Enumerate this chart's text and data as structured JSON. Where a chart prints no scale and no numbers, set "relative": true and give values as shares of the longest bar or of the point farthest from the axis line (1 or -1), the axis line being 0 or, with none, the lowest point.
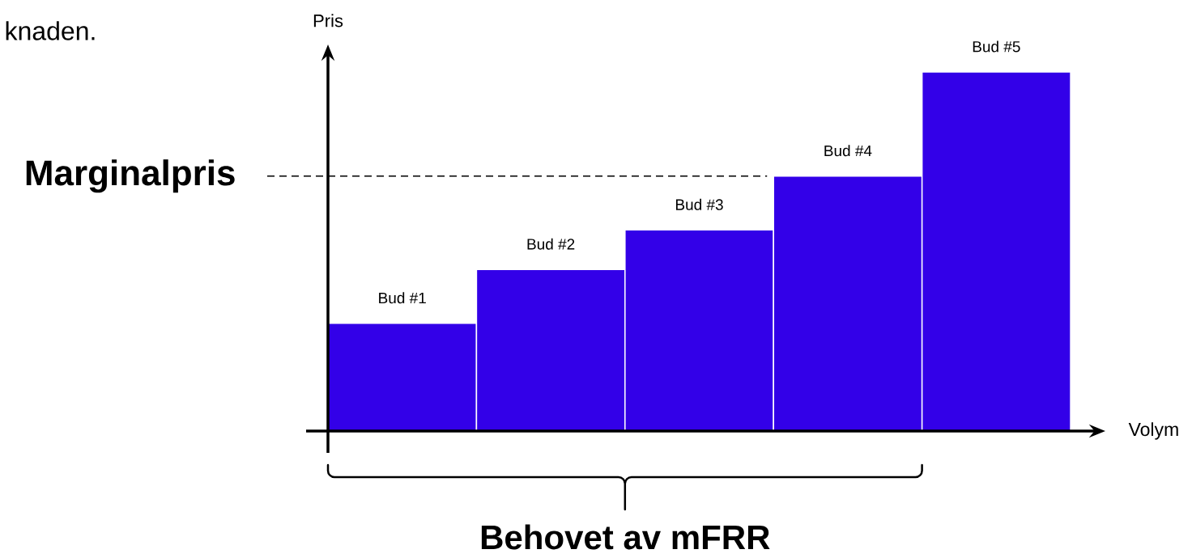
{
  "chart_data": {
    "type": "bar",
    "relative": true,
    "xlabel": "Volym",
    "ylabel": "Pris",
    "categories": [
      "Bud #1",
      "Bud #2",
      "Bud #3",
      "Bud #4",
      "Bud #5"
    ],
    "values": [
      0.3,
      0.45,
      0.56,
      0.71,
      1
    ],
    "color": "#3300e8",
    "ref_lines": [
      {
        "axis": "y",
        "value": 0.71,
        "label": "Marginalpris",
        "line_style": "dashed"
      }
    ],
    "annotations": [
      "knaden.",
      "Behovet av mFRR"
    ]
  }
}
